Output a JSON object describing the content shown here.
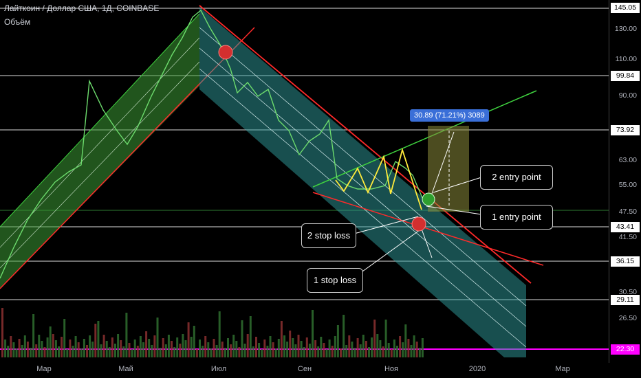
{
  "header": {
    "title": "Лайткоин / Доллар США, 1Д, COINBASE",
    "volume_label": "Объём"
  },
  "chart_data": {
    "type": "line",
    "yaxis_ticks": [
      "130.00",
      "110.00",
      "90.00",
      "63.00",
      "55.00",
      "47.50",
      "41.50",
      "30.50",
      "26.50",
      "22.30"
    ],
    "price_levels": [
      "145.05",
      "99.84",
      "73.92",
      "43.41",
      "36.15",
      "29.11",
      "22.30"
    ],
    "current_price": "22.30",
    "x_ticks": [
      "Мар",
      "Май",
      "Июл",
      "Сен",
      "Ноя",
      "2020",
      "Мар"
    ],
    "price_path": [
      [
        0,
        405
      ],
      [
        20,
        360
      ],
      [
        40,
        320
      ],
      [
        60,
        290
      ],
      [
        80,
        265
      ],
      [
        100,
        250
      ],
      [
        118,
        240
      ],
      [
        130,
        118
      ],
      [
        150,
        160
      ],
      [
        170,
        190
      ],
      [
        185,
        210
      ],
      [
        200,
        185
      ],
      [
        220,
        140
      ],
      [
        235,
        110
      ],
      [
        250,
        80
      ],
      [
        265,
        55
      ],
      [
        280,
        25
      ],
      [
        292,
        15
      ],
      [
        305,
        40
      ],
      [
        320,
        65
      ],
      [
        335,
        100
      ],
      [
        345,
        135
      ],
      [
        360,
        120
      ],
      [
        375,
        140
      ],
      [
        390,
        130
      ],
      [
        405,
        175
      ],
      [
        420,
        190
      ],
      [
        435,
        225
      ],
      [
        450,
        205
      ],
      [
        465,
        195
      ],
      [
        478,
        175
      ],
      [
        490,
        260
      ],
      [
        505,
        270
      ],
      [
        520,
        275
      ],
      [
        540,
        275
      ],
      [
        560,
        270
      ],
      [
        575,
        235
      ],
      [
        590,
        245
      ],
      [
        600,
        255
      ],
      [
        615,
        290
      ]
    ],
    "annotations": {
      "measure_label": "30.89 (71.21%) 3089",
      "entry_2": "2 entry point",
      "entry_1": "1 entry point",
      "stop_2": "2 stop loss",
      "stop_1": "1 stop loss"
    }
  },
  "colors": {
    "up_channel": "#4caf50",
    "down_channel": "#26a69a",
    "resistance": "#ff2a2a",
    "triangle_top": "#3fd23f",
    "zigzag": "#ffeb3b",
    "current": "#ff00ff"
  }
}
